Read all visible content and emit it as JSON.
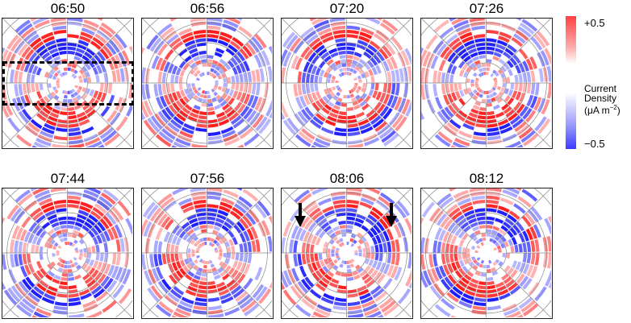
{
  "chart_data": {
    "type": "heatmap",
    "subtype": "polar-grid-panels",
    "title": "",
    "panels": [
      {
        "label": "06:50",
        "row": 0,
        "col": 0
      },
      {
        "label": "06:56",
        "row": 0,
        "col": 1
      },
      {
        "label": "07:20",
        "row": 0,
        "col": 2
      },
      {
        "label": "07:26",
        "row": 0,
        "col": 3
      },
      {
        "label": "07:44",
        "row": 1,
        "col": 0
      },
      {
        "label": "07:56",
        "row": 1,
        "col": 1
      },
      {
        "label": "08:06",
        "row": 1,
        "col": 2
      },
      {
        "label": "08:12",
        "row": 1,
        "col": 3
      }
    ],
    "colorbar": {
      "label": "Current Density (μA m⁻²)",
      "min": -0.5,
      "max": 0.5,
      "tick_labels": [
        "+0.5",
        "−0.5"
      ],
      "colors": {
        "positive": "#ff3b3b",
        "negative": "#3b3bff",
        "zero": "#ffffff"
      }
    },
    "annotations": [
      {
        "type": "dashed-box",
        "panel": "06:50",
        "description": "horizontal band across centre"
      },
      {
        "type": "arrow",
        "panel": "08:06",
        "position": "left",
        "direction": "down"
      },
      {
        "type": "arrow",
        "panel": "08:06",
        "position": "right",
        "direction": "down"
      }
    ],
    "grid": {
      "rings": 3,
      "radial_lines": 8
    }
  },
  "colorbar": {
    "max_label": "+0.5",
    "min_label": "−0.5",
    "title_line1": "Current",
    "title_line2": "Density",
    "title_line3": "(μA m",
    "title_sup": "−2",
    "title_end": ")"
  },
  "panels": [
    {
      "title": "06:50"
    },
    {
      "title": "06:56"
    },
    {
      "title": "07:20"
    },
    {
      "title": "07:26"
    },
    {
      "title": "07:44"
    },
    {
      "title": "07:56"
    },
    {
      "title": "08:06"
    },
    {
      "title": "08:12"
    }
  ]
}
